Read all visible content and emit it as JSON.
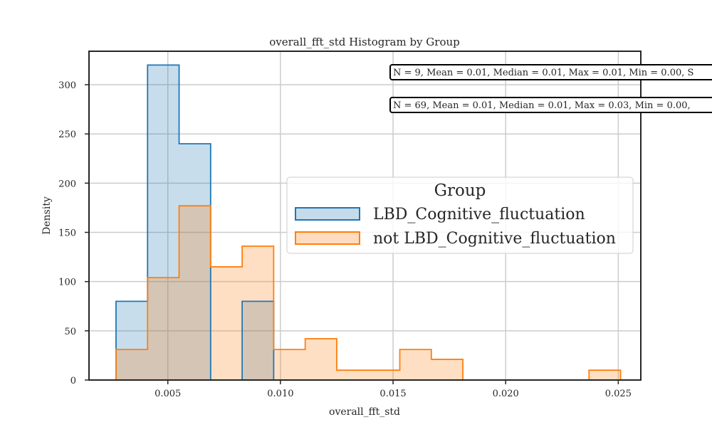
{
  "chart_data": {
    "type": "histogram",
    "title": "overall_fft_std Histogram by Group",
    "xlabel": "overall_fft_std",
    "ylabel": "Density",
    "xlim": [
      0.0015,
      0.026
    ],
    "ylim": [
      0,
      334
    ],
    "grid": true,
    "xticks": [
      0.005,
      0.01,
      0.015,
      0.02,
      0.025
    ],
    "xtick_labels": [
      "0.005",
      "0.010",
      "0.015",
      "0.020",
      "0.025"
    ],
    "yticks": [
      0,
      50,
      100,
      150,
      200,
      250,
      300
    ],
    "ytick_labels": [
      "0",
      "50",
      "100",
      "150",
      "200",
      "250",
      "300"
    ],
    "legend": {
      "title": "Group",
      "position": "center-right"
    },
    "series": [
      {
        "name": "LBD_Cognitive_fluctuation",
        "color": "#1f77b4",
        "fill": "#c5dbeb",
        "bin_edges": [
          0.0027,
          0.0041,
          0.0055,
          0.0069,
          0.0083,
          0.0097
        ],
        "values": [
          80,
          320,
          240,
          0,
          80
        ]
      },
      {
        "name": "not LBD_Cognitive_fluctuation",
        "color": "#ff7f0e",
        "fill": "#ffdbbf",
        "bin_edges": [
          0.0027,
          0.0041,
          0.0055,
          0.0069,
          0.0083,
          0.0097,
          0.0111,
          0.0125,
          0.0139,
          0.0153,
          0.0167,
          0.0181,
          0.0195,
          0.0209,
          0.0223,
          0.0237,
          0.0251
        ],
        "values": [
          31,
          104,
          177,
          115,
          136,
          31,
          42,
          10,
          10,
          31,
          21,
          0,
          0,
          0,
          0,
          10
        ]
      }
    ],
    "annotations": [
      {
        "text": "N = 9, Mean = 0.01, Median = 0.01, Max = 0.01, Min = 0.00, S"
      },
      {
        "text": "N = 69, Mean = 0.01, Median = 0.01, Max = 0.03, Min = 0.00, "
      }
    ]
  }
}
